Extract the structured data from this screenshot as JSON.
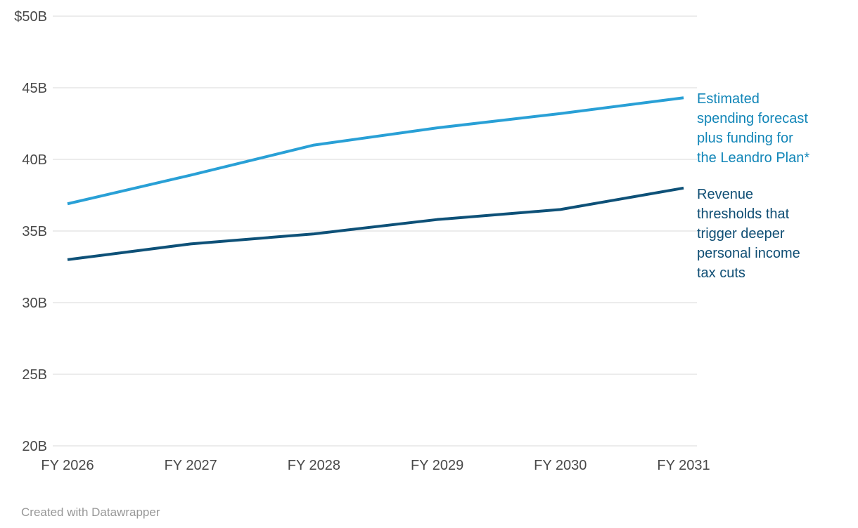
{
  "chart_data": {
    "type": "line",
    "x_categories": [
      "FY 2026",
      "FY 2027",
      "FY 2028",
      "FY 2029",
      "FY 2030",
      "FY 2031"
    ],
    "series": [
      {
        "name": "Estimated spending forecast plus funding for the Leandro Plan*",
        "label_text": "Estimated\nspending forecast\nplus funding for\nthe Leandro Plan*",
        "values": [
          36.9,
          38.9,
          41.0,
          42.2,
          43.2,
          44.3
        ],
        "color": "#29a0d6",
        "label_color": "#1286b8"
      },
      {
        "name": "Revenue thresholds that trigger deeper personal income tax cuts",
        "label_text": "Revenue\nthresholds that\ntrigger deeper\npersonal income\ntax cuts",
        "values": [
          33.0,
          34.1,
          34.8,
          35.8,
          36.5,
          38.0
        ],
        "color": "#0e5178",
        "label_color": "#0f4e74"
      }
    ],
    "y_ticks": [
      {
        "value": 50,
        "label": "$50B"
      },
      {
        "value": 45,
        "label": "45B"
      },
      {
        "value": 40,
        "label": "40B"
      },
      {
        "value": 35,
        "label": "35B"
      },
      {
        "value": 30,
        "label": "30B"
      },
      {
        "value": 25,
        "label": "25B"
      },
      {
        "value": 20,
        "label": "20B"
      }
    ],
    "ylim": [
      20,
      50
    ],
    "grid": true,
    "legend_position": "right",
    "axis_label_color": "#494949",
    "grid_color": "#d8d8d8"
  },
  "footer": {
    "attribution": "Created with Datawrapper"
  }
}
